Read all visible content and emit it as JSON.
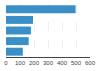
{
  "chart_data": {
    "type": "bar",
    "orientation": "horizontal",
    "categories": [
      null,
      null,
      null,
      null,
      null
    ],
    "values": [
      497,
      193,
      178,
      162,
      120
    ],
    "color": "#3a8fc7",
    "xlim": [
      0,
      600
    ],
    "xticks": [
      0,
      100,
      200,
      300,
      400,
      500,
      600
    ],
    "grid": true,
    "tick_labels": "x"
  }
}
